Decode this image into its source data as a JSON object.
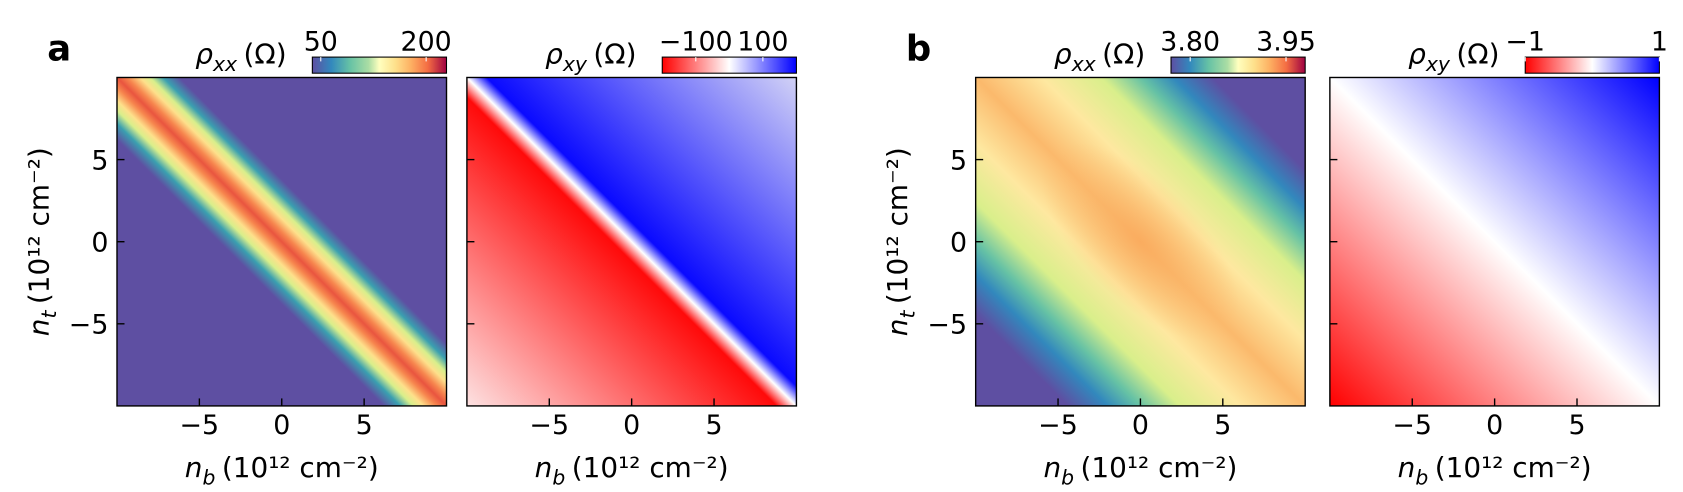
{
  "chart_data": [
    {
      "type": "heatmap",
      "panel_label": "a",
      "colormap": "Spectral_r",
      "colorbar_label": {
        "symbol": "ρ",
        "subscript": "xx",
        "unit": "(Ω)"
      },
      "clim": [
        38,
        229
      ],
      "cticks": [
        50,
        200
      ],
      "x_label": {
        "symbol": "n",
        "subscript": "b",
        "unit": "(10¹² cm⁻²)"
      },
      "y_label": {
        "symbol": "n",
        "subscript": "t",
        "unit": "(10¹² cm⁻²)"
      },
      "xlim": [
        -10,
        10
      ],
      "ylim": [
        -10,
        10
      ],
      "xticks": [
        {
          "value": -5,
          "label": "−5"
        },
        0,
        5
      ],
      "yticks": [
        {
          "value": -5,
          "label": "−5"
        },
        0,
        5
      ]
    },
    {
      "type": "heatmap",
      "colormap": "bwr_r",
      "colorbar_label": {
        "symbol": "ρ",
        "subscript": "xy",
        "unit": "(Ω)"
      },
      "clim": [
        -200,
        200
      ],
      "cticks": [
        {
          "value": -100,
          "label": "−100"
        },
        100
      ],
      "x_label": {
        "symbol": "n",
        "subscript": "b",
        "unit": "(10¹² cm⁻²)"
      },
      "xlim": [
        -10,
        10
      ],
      "ylim": [
        -10,
        10
      ],
      "xticks": [
        {
          "value": -5,
          "label": "−5"
        },
        0,
        5
      ]
    },
    {
      "type": "heatmap",
      "panel_label": "b",
      "colormap": "Spectral_r",
      "colorbar_label": {
        "symbol": "ρ",
        "subscript": "xx",
        "unit": "(Ω)"
      },
      "clim": [
        3.77,
        3.98
      ],
      "cticks": [
        {
          "value": 3.8,
          "label": "3.80"
        },
        {
          "value": 3.95,
          "label": "3.95"
        }
      ],
      "x_label": {
        "symbol": "n",
        "subscript": "b",
        "unit": "(10¹² cm⁻²)"
      },
      "y_label": {
        "symbol": "n",
        "subscript": "t",
        "unit": "(10¹² cm⁻²)"
      },
      "xlim": [
        -10,
        10
      ],
      "ylim": [
        -10,
        10
      ],
      "xticks": [
        {
          "value": -5,
          "label": "−5"
        },
        0,
        5
      ],
      "yticks": [
        {
          "value": -5,
          "label": "−5"
        },
        0,
        5
      ]
    },
    {
      "type": "heatmap",
      "colormap": "bwr_r",
      "colorbar_label": {
        "symbol": "ρ",
        "subscript": "xy",
        "unit": "(Ω)"
      },
      "clim": [
        -1,
        1
      ],
      "cticks": [
        {
          "value": -1,
          "label": "−1"
        },
        1
      ],
      "x_label": {
        "symbol": "n",
        "subscript": "b",
        "unit": "(10¹² cm⁻²)"
      },
      "xlim": [
        -10,
        10
      ],
      "ylim": [
        -10,
        10
      ],
      "xticks": [
        {
          "value": -5,
          "label": "−5"
        },
        0,
        5
      ]
    }
  ]
}
